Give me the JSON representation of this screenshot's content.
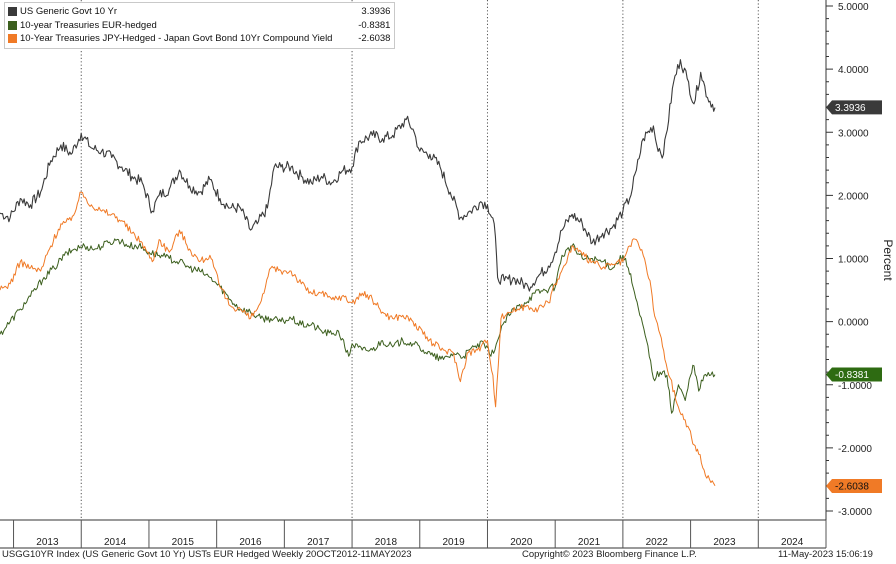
{
  "chart_data": {
    "type": "line",
    "ylabel": "Percent",
    "ylim": [
      -3.0,
      5.0
    ],
    "y_ticks": [
      "5.0000",
      "4.0000",
      "3.0000",
      "2.0000",
      "1.0000",
      "0.0000",
      "-1.0000",
      "-2.0000",
      "-3.0000"
    ],
    "y_tick_values": [
      5,
      4,
      3,
      2,
      1,
      0,
      -1,
      -2,
      -3
    ],
    "x_range": [
      2012.8,
      2025.0
    ],
    "x_labels": [
      "2013",
      "2014",
      "2015",
      "2016",
      "2017",
      "2018",
      "2019",
      "2020",
      "2021",
      "2022",
      "2023",
      "2024"
    ],
    "x_gridlines": [
      2014,
      2018,
      2020,
      2022,
      2024
    ],
    "series": [
      {
        "name": "US Generic Govt 10 Yr",
        "last_value": "3.3936",
        "color": "#3a3a3a",
        "points": [
          [
            2012.8,
            1.72
          ],
          [
            2012.95,
            1.65
          ],
          [
            2013.1,
            1.95
          ],
          [
            2013.25,
            1.85
          ],
          [
            2013.4,
            2.05
          ],
          [
            2013.55,
            2.55
          ],
          [
            2013.7,
            2.8
          ],
          [
            2013.85,
            2.65
          ],
          [
            2014.0,
            2.98
          ],
          [
            2014.15,
            2.75
          ],
          [
            2014.3,
            2.7
          ],
          [
            2014.45,
            2.6
          ],
          [
            2014.6,
            2.45
          ],
          [
            2014.75,
            2.3
          ],
          [
            2014.9,
            2.2
          ],
          [
            2015.05,
            1.75
          ],
          [
            2015.15,
            2.0
          ],
          [
            2015.3,
            2.1
          ],
          [
            2015.45,
            2.4
          ],
          [
            2015.6,
            2.15
          ],
          [
            2015.75,
            2.05
          ],
          [
            2015.9,
            2.25
          ],
          [
            2016.05,
            1.95
          ],
          [
            2016.2,
            1.8
          ],
          [
            2016.35,
            1.8
          ],
          [
            2016.5,
            1.45
          ],
          [
            2016.6,
            1.55
          ],
          [
            2016.75,
            1.8
          ],
          [
            2016.85,
            2.45
          ],
          [
            2016.95,
            2.45
          ],
          [
            2017.1,
            2.45
          ],
          [
            2017.25,
            2.3
          ],
          [
            2017.4,
            2.2
          ],
          [
            2017.55,
            2.3
          ],
          [
            2017.7,
            2.2
          ],
          [
            2017.85,
            2.38
          ],
          [
            2018.0,
            2.45
          ],
          [
            2018.1,
            2.85
          ],
          [
            2018.3,
            2.95
          ],
          [
            2018.45,
            2.9
          ],
          [
            2018.6,
            2.95
          ],
          [
            2018.8,
            3.2
          ],
          [
            2018.9,
            3.05
          ],
          [
            2019.0,
            2.7
          ],
          [
            2019.15,
            2.65
          ],
          [
            2019.3,
            2.45
          ],
          [
            2019.45,
            2.05
          ],
          [
            2019.6,
            1.65
          ],
          [
            2019.75,
            1.75
          ],
          [
            2019.9,
            1.9
          ],
          [
            2020.0,
            1.85
          ],
          [
            2020.1,
            1.55
          ],
          [
            2020.15,
            0.7
          ],
          [
            2020.25,
            0.65
          ],
          [
            2020.4,
            0.68
          ],
          [
            2020.6,
            0.55
          ],
          [
            2020.75,
            0.72
          ],
          [
            2020.9,
            0.88
          ],
          [
            2021.0,
            1.1
          ],
          [
            2021.1,
            1.45
          ],
          [
            2021.25,
            1.7
          ],
          [
            2021.4,
            1.55
          ],
          [
            2021.55,
            1.25
          ],
          [
            2021.7,
            1.4
          ],
          [
            2021.85,
            1.5
          ],
          [
            2022.0,
            1.75
          ],
          [
            2022.1,
            1.95
          ],
          [
            2022.2,
            2.4
          ],
          [
            2022.3,
            2.9
          ],
          [
            2022.45,
            3.1
          ],
          [
            2022.5,
            2.8
          ],
          [
            2022.6,
            2.65
          ],
          [
            2022.75,
            3.8
          ],
          [
            2022.85,
            4.15
          ],
          [
            2022.95,
            3.85
          ],
          [
            2023.05,
            3.45
          ],
          [
            2023.15,
            3.95
          ],
          [
            2023.25,
            3.55
          ],
          [
            2023.36,
            3.39
          ]
        ]
      },
      {
        "name": "10-year Treasuries EUR-hedged",
        "last_value": "-0.8381",
        "color": "#3c5f1e",
        "points": [
          [
            2012.8,
            -0.2
          ],
          [
            2012.95,
            0.0
          ],
          [
            2013.1,
            0.2
          ],
          [
            2013.25,
            0.4
          ],
          [
            2013.45,
            0.7
          ],
          [
            2013.6,
            0.85
          ],
          [
            2013.75,
            1.05
          ],
          [
            2013.9,
            1.15
          ],
          [
            2014.05,
            1.2
          ],
          [
            2014.2,
            1.15
          ],
          [
            2014.4,
            1.25
          ],
          [
            2014.55,
            1.3
          ],
          [
            2014.7,
            1.2
          ],
          [
            2014.85,
            1.2
          ],
          [
            2015.0,
            1.1
          ],
          [
            2015.15,
            1.05
          ],
          [
            2015.3,
            1.0
          ],
          [
            2015.45,
            0.95
          ],
          [
            2015.6,
            0.85
          ],
          [
            2015.75,
            0.8
          ],
          [
            2015.9,
            0.7
          ],
          [
            2016.05,
            0.55
          ],
          [
            2016.2,
            0.35
          ],
          [
            2016.35,
            0.2
          ],
          [
            2016.5,
            0.15
          ],
          [
            2016.65,
            0.05
          ],
          [
            2016.8,
            0.05
          ],
          [
            2016.95,
            0.0
          ],
          [
            2017.1,
            0.05
          ],
          [
            2017.25,
            -0.05
          ],
          [
            2017.4,
            -0.05
          ],
          [
            2017.55,
            -0.15
          ],
          [
            2017.7,
            -0.2
          ],
          [
            2017.8,
            -0.15
          ],
          [
            2017.95,
            -0.55
          ],
          [
            2018.0,
            -0.35
          ],
          [
            2018.15,
            -0.45
          ],
          [
            2018.3,
            -0.45
          ],
          [
            2018.45,
            -0.3
          ],
          [
            2018.6,
            -0.4
          ],
          [
            2018.75,
            -0.3
          ],
          [
            2018.9,
            -0.35
          ],
          [
            2019.05,
            -0.45
          ],
          [
            2019.2,
            -0.55
          ],
          [
            2019.35,
            -0.6
          ],
          [
            2019.5,
            -0.5
          ],
          [
            2019.65,
            -0.55
          ],
          [
            2019.8,
            -0.4
          ],
          [
            2019.95,
            -0.35
          ],
          [
            2020.05,
            -0.55
          ],
          [
            2020.15,
            -0.3
          ],
          [
            2020.25,
            0.0
          ],
          [
            2020.4,
            0.2
          ],
          [
            2020.55,
            0.3
          ],
          [
            2020.7,
            0.45
          ],
          [
            2020.85,
            0.5
          ],
          [
            2021.0,
            0.55
          ],
          [
            2021.1,
            1.05
          ],
          [
            2021.25,
            1.2
          ],
          [
            2021.4,
            1.0
          ],
          [
            2021.55,
            1.0
          ],
          [
            2021.7,
            0.95
          ],
          [
            2021.85,
            0.85
          ],
          [
            2022.0,
            1.05
          ],
          [
            2022.08,
            0.85
          ],
          [
            2022.15,
            0.55
          ],
          [
            2022.25,
            0.1
          ],
          [
            2022.35,
            -0.3
          ],
          [
            2022.45,
            -0.9
          ],
          [
            2022.55,
            -0.8
          ],
          [
            2022.65,
            -0.85
          ],
          [
            2022.72,
            -1.45
          ],
          [
            2022.82,
            -1.0
          ],
          [
            2022.92,
            -1.25
          ],
          [
            2023.0,
            -0.85
          ],
          [
            2023.05,
            -0.7
          ],
          [
            2023.12,
            -1.1
          ],
          [
            2023.2,
            -0.85
          ],
          [
            2023.36,
            -0.84
          ]
        ]
      },
      {
        "name": "10-Year Treasuries JPY-Hedged - Japan Govt Bond 10Yr Compound Yield",
        "last_value": "-2.6038",
        "color": "#f07a26",
        "points": [
          [
            2012.8,
            0.5
          ],
          [
            2012.95,
            0.6
          ],
          [
            2013.1,
            0.95
          ],
          [
            2013.25,
            0.85
          ],
          [
            2013.4,
            0.8
          ],
          [
            2013.55,
            1.2
          ],
          [
            2013.7,
            1.55
          ],
          [
            2013.85,
            1.6
          ],
          [
            2014.0,
            2.05
          ],
          [
            2014.15,
            1.85
          ],
          [
            2014.3,
            1.75
          ],
          [
            2014.45,
            1.7
          ],
          [
            2014.6,
            1.6
          ],
          [
            2014.75,
            1.4
          ],
          [
            2014.9,
            1.25
          ],
          [
            2015.05,
            0.95
          ],
          [
            2015.15,
            1.3
          ],
          [
            2015.3,
            1.1
          ],
          [
            2015.45,
            1.45
          ],
          [
            2015.6,
            1.15
          ],
          [
            2015.75,
            0.95
          ],
          [
            2015.9,
            1.05
          ],
          [
            2016.05,
            0.55
          ],
          [
            2016.2,
            0.25
          ],
          [
            2016.35,
            0.2
          ],
          [
            2016.5,
            0.05
          ],
          [
            2016.6,
            0.2
          ],
          [
            2016.7,
            0.45
          ],
          [
            2016.8,
            0.85
          ],
          [
            2016.95,
            0.8
          ],
          [
            2017.1,
            0.8
          ],
          [
            2017.25,
            0.6
          ],
          [
            2017.4,
            0.45
          ],
          [
            2017.55,
            0.45
          ],
          [
            2017.7,
            0.35
          ],
          [
            2017.85,
            0.4
          ],
          [
            2018.0,
            0.3
          ],
          [
            2018.15,
            0.45
          ],
          [
            2018.3,
            0.35
          ],
          [
            2018.45,
            0.15
          ],
          [
            2018.6,
            0.05
          ],
          [
            2018.75,
            0.1
          ],
          [
            2018.9,
            0.0
          ],
          [
            2019.05,
            -0.2
          ],
          [
            2019.2,
            -0.35
          ],
          [
            2019.35,
            -0.45
          ],
          [
            2019.5,
            -0.5
          ],
          [
            2019.6,
            -0.95
          ],
          [
            2019.7,
            -0.5
          ],
          [
            2019.85,
            -0.45
          ],
          [
            2020.0,
            -0.3
          ],
          [
            2020.08,
            -0.85
          ],
          [
            2020.12,
            -1.35
          ],
          [
            2020.2,
            0.05
          ],
          [
            2020.3,
            0.15
          ],
          [
            2020.45,
            0.2
          ],
          [
            2020.6,
            0.25
          ],
          [
            2020.75,
            0.2
          ],
          [
            2020.9,
            0.3
          ],
          [
            2021.0,
            0.6
          ],
          [
            2021.15,
            0.9
          ],
          [
            2021.25,
            1.2
          ],
          [
            2021.4,
            1.05
          ],
          [
            2021.55,
            0.95
          ],
          [
            2021.7,
            0.85
          ],
          [
            2021.85,
            0.9
          ],
          [
            2022.0,
            0.95
          ],
          [
            2022.1,
            1.2
          ],
          [
            2022.2,
            1.3
          ],
          [
            2022.3,
            1.05
          ],
          [
            2022.4,
            0.65
          ],
          [
            2022.45,
            0.2
          ],
          [
            2022.55,
            -0.2
          ],
          [
            2022.62,
            -0.6
          ],
          [
            2022.7,
            -0.9
          ],
          [
            2022.8,
            -1.3
          ],
          [
            2022.9,
            -1.55
          ],
          [
            2022.98,
            -1.7
          ],
          [
            2023.05,
            -1.95
          ],
          [
            2023.12,
            -2.1
          ],
          [
            2023.2,
            -2.35
          ],
          [
            2023.28,
            -2.5
          ],
          [
            2023.36,
            -2.6
          ]
        ]
      }
    ]
  },
  "footer": {
    "index": "USGG10YR Index (US Generic Govt 10 Yr) USTs EUR Hedged  Weekly 20OCT2012-11MAY2023",
    "copyright": "Copyright© 2023 Bloomberg Finance L.P.",
    "timestamp": "11-May-2023 15:06:19"
  }
}
